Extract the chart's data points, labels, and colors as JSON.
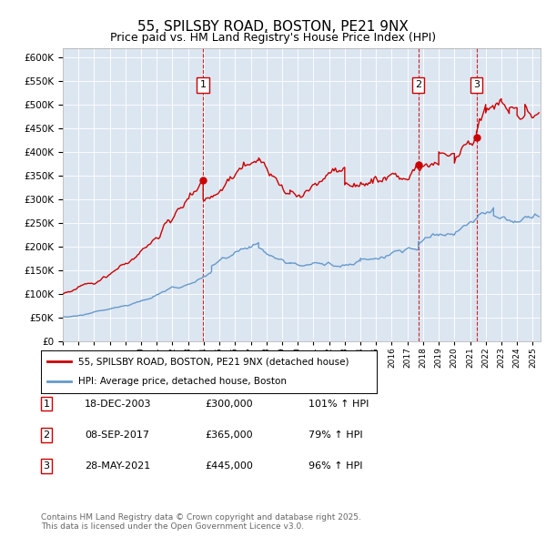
{
  "title": "55, SPILSBY ROAD, BOSTON, PE21 9NX",
  "subtitle": "Price paid vs. HM Land Registry's House Price Index (HPI)",
  "ylim": [
    0,
    620000
  ],
  "yticks": [
    0,
    50000,
    100000,
    150000,
    200000,
    250000,
    300000,
    350000,
    400000,
    450000,
    500000,
    550000,
    600000
  ],
  "xlim_start": 1995.0,
  "xlim_end": 2025.5,
  "bg_color": "#dce6f1",
  "line_color_red": "#cc0000",
  "line_color_blue": "#6699cc",
  "sale_marker_color": "#cc0000",
  "sale_vline_color": "#cc0000",
  "transactions": [
    {
      "num": 1,
      "date_str": "18-DEC-2003",
      "date_x": 2003.96,
      "price": 300000,
      "hpi_pct": "101%",
      "direction": "↑"
    },
    {
      "num": 2,
      "date_str": "08-SEP-2017",
      "date_x": 2017.69,
      "price": 365000,
      "hpi_pct": "79%",
      "direction": "↑"
    },
    {
      "num": 3,
      "date_str": "28-MAY-2021",
      "date_x": 2021.41,
      "price": 445000,
      "hpi_pct": "96%",
      "direction": "↑"
    }
  ],
  "legend_red_label": "55, SPILSBY ROAD, BOSTON, PE21 9NX (detached house)",
  "legend_blue_label": "HPI: Average price, detached house, Boston",
  "footnote": "Contains HM Land Registry data © Crown copyright and database right 2025.\nThis data is licensed under the Open Government Licence v3.0.",
  "table_rows": [
    [
      "1",
      "18-DEC-2003",
      "£300,000",
      "101% ↑ HPI"
    ],
    [
      "2",
      "08-SEP-2017",
      "£365,000",
      "79% ↑ HPI"
    ],
    [
      "3",
      "28-MAY-2021",
      "£445,000",
      "96% ↑ HPI"
    ]
  ]
}
